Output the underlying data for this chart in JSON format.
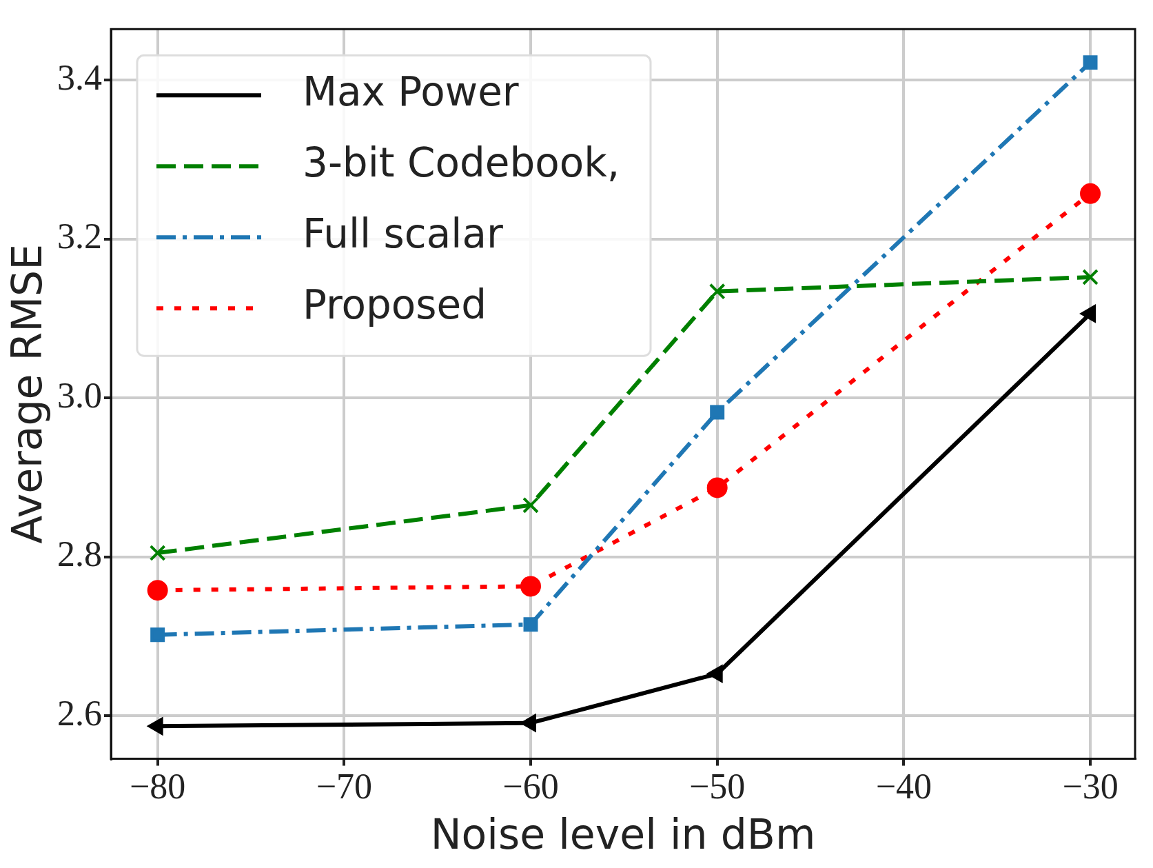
{
  "chart_data": {
    "type": "line",
    "xlabel": "Noise level in dBm",
    "ylabel": "Average RMSE",
    "x": [
      -80,
      -60,
      -50,
      -30
    ],
    "xlim": [
      -82.5,
      -27.6
    ],
    "ylim": [
      2.546,
      3.464
    ],
    "xticks": [
      {
        "value": -80,
        "label": "−80"
      },
      {
        "value": -70,
        "label": "−70"
      },
      {
        "value": -60,
        "label": "−60"
      },
      {
        "value": -50,
        "label": "−50"
      },
      {
        "value": -40,
        "label": "−40"
      },
      {
        "value": -30,
        "label": "−30"
      }
    ],
    "yticks": [
      {
        "value": 2.6,
        "label": "2.6"
      },
      {
        "value": 2.8,
        "label": "2.8"
      },
      {
        "value": 3.0,
        "label": "3.0"
      },
      {
        "value": 3.2,
        "label": "3.2"
      },
      {
        "value": 3.4,
        "label": "3.4"
      }
    ],
    "grid": true,
    "legend": "top left",
    "series": [
      {
        "name": "Max Power",
        "color": "#000000",
        "marker": "triangle",
        "line_style": "solid",
        "values": [
          2.587,
          2.591,
          2.653,
          3.106
        ]
      },
      {
        "name": "3-bit Codebook,",
        "color": "#008000",
        "marker": "cross",
        "line_style": "dashed",
        "values": [
          2.805,
          2.865,
          3.134,
          3.152
        ]
      },
      {
        "name": "Full scalar",
        "color": "#1f77b4",
        "marker": "square",
        "line_style": "dashdot",
        "values": [
          2.702,
          2.715,
          2.982,
          3.422
        ]
      },
      {
        "name": "Proposed",
        "color": "#ff0000",
        "marker": "circle",
        "line_style": "dotted",
        "values": [
          2.758,
          2.763,
          2.887,
          3.257
        ]
      }
    ]
  }
}
